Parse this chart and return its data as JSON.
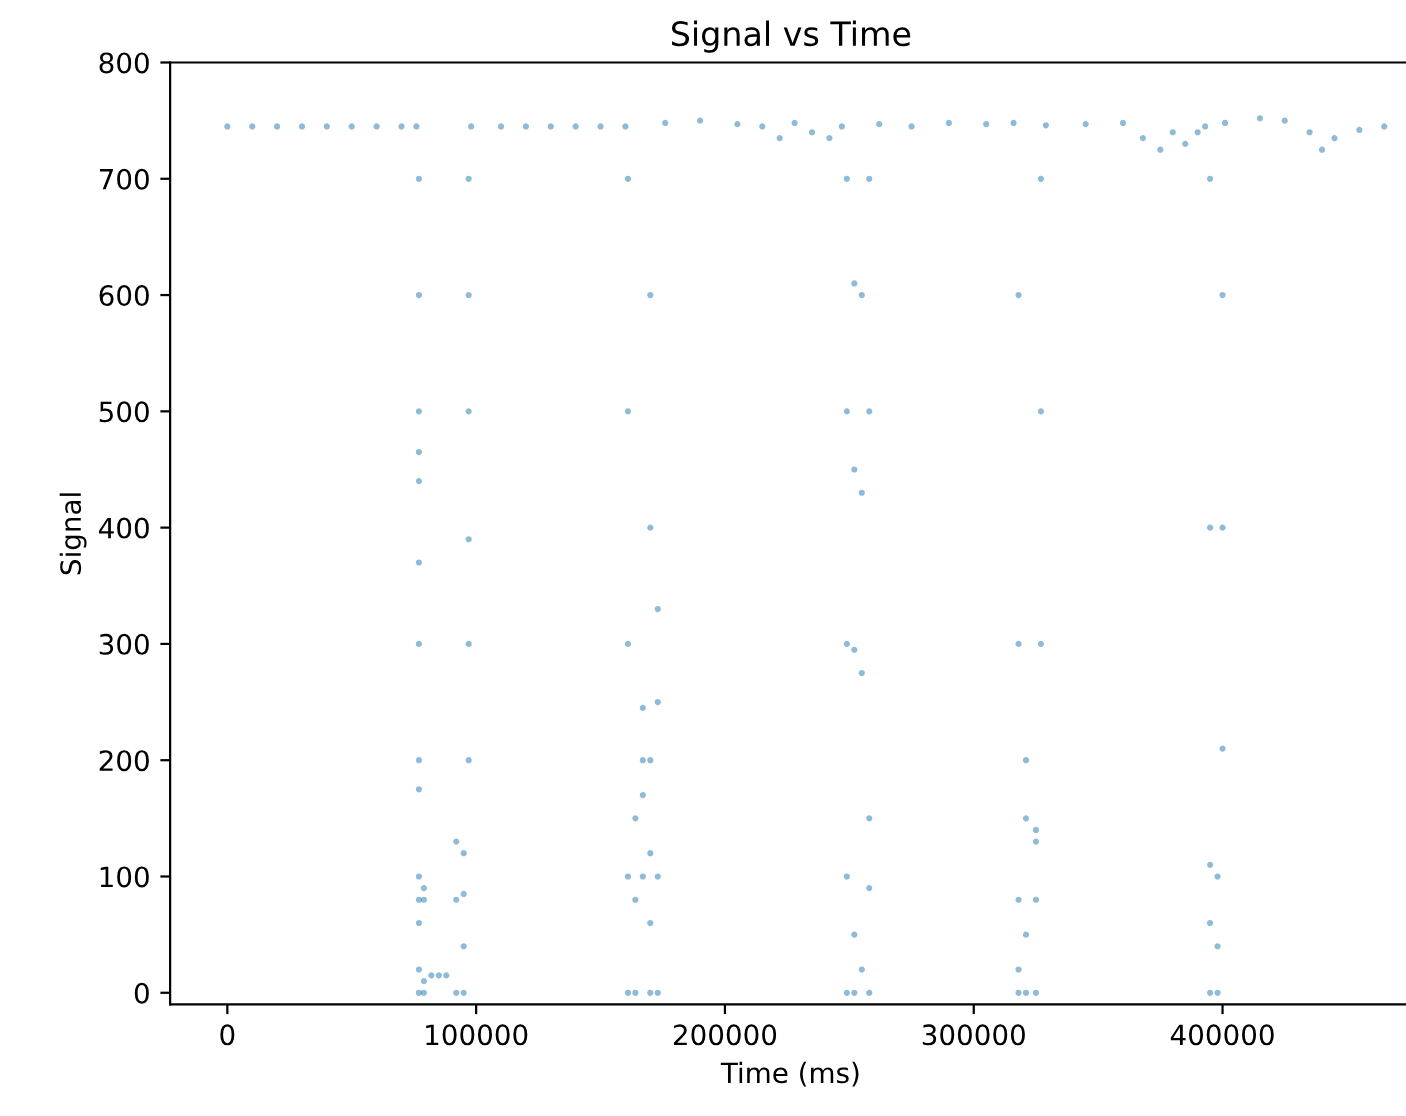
{
  "chart_data": {
    "type": "scatter",
    "title": "Signal vs Time",
    "xlabel": "Time (ms)",
    "ylabel": "Signal",
    "xlim": [
      -23000,
      476000
    ],
    "xticks": [
      0,
      100000,
      200000,
      300000,
      400000
    ],
    "ylim": [
      -10,
      800
    ],
    "yticks": [
      0,
      100,
      200,
      300,
      400,
      500,
      600,
      700,
      800
    ],
    "grid": false,
    "marker": "circle",
    "series": [
      {
        "color": "#1f77b4",
        "x": [
          0,
          10000,
          20000,
          30000,
          40000,
          50000,
          60000,
          70000,
          76000,
          77000,
          77000,
          77000,
          77000,
          77000,
          77000,
          77000,
          77000,
          77000,
          77000,
          77000,
          77000,
          77000,
          77000,
          79000,
          79000,
          79000,
          79000,
          82000,
          85000,
          88000,
          92000,
          92000,
          92000,
          95000,
          95000,
          95000,
          95000,
          97000,
          97000,
          97000,
          97000,
          97000,
          97000,
          98000,
          110000,
          120000,
          130000,
          140000,
          150000,
          160000,
          161000,
          161000,
          161000,
          161000,
          161000,
          164000,
          164000,
          164000,
          167000,
          167000,
          167000,
          167000,
          170000,
          170000,
          170000,
          170000,
          170000,
          170000,
          173000,
          173000,
          173000,
          173000,
          176000,
          190000,
          205000,
          215000,
          222000,
          228000,
          235000,
          242000,
          247000,
          249000,
          249000,
          249000,
          249000,
          249000,
          252000,
          252000,
          252000,
          252000,
          252000,
          255000,
          255000,
          255000,
          255000,
          258000,
          258000,
          258000,
          258000,
          258000,
          262000,
          275000,
          290000,
          305000,
          316000,
          318000,
          318000,
          318000,
          318000,
          318000,
          321000,
          321000,
          321000,
          321000,
          325000,
          325000,
          325000,
          325000,
          327000,
          327000,
          327000,
          329000,
          345000,
          360000,
          368000,
          375000,
          380000,
          385000,
          390000,
          393000,
          395000,
          395000,
          395000,
          395000,
          395000,
          398000,
          398000,
          398000,
          400000,
          400000,
          400000,
          401000,
          415000,
          425000,
          435000,
          440000,
          445000,
          455000,
          465000
        ],
        "values": [
          745,
          745,
          745,
          745,
          745,
          745,
          745,
          745,
          745,
          700,
          600,
          500,
          465,
          440,
          370,
          300,
          200,
          175,
          100,
          80,
          60,
          20,
          0,
          0,
          10,
          80,
          90,
          15,
          15,
          15,
          0,
          80,
          130,
          0,
          40,
          85,
          120,
          200,
          300,
          390,
          500,
          600,
          700,
          745,
          745,
          745,
          745,
          745,
          745,
          745,
          700,
          500,
          300,
          100,
          0,
          0,
          80,
          150,
          245,
          200,
          170,
          100,
          0,
          60,
          120,
          600,
          400,
          200,
          250,
          330,
          100,
          0,
          748,
          750,
          747,
          745,
          735,
          748,
          740,
          735,
          745,
          700,
          500,
          300,
          100,
          0,
          0,
          50,
          295,
          450,
          610,
          600,
          430,
          275,
          20,
          0,
          90,
          150,
          500,
          700,
          747,
          745,
          748,
          747,
          748,
          600,
          300,
          80,
          20,
          0,
          200,
          150,
          0,
          50,
          0,
          80,
          130,
          140,
          300,
          500,
          700,
          746,
          747,
          748,
          735,
          725,
          740,
          730,
          740,
          745,
          700,
          400,
          110,
          60,
          0,
          0,
          40,
          100,
          210,
          400,
          600,
          748,
          752,
          750,
          740,
          725,
          735,
          742,
          745
        ]
      }
    ]
  }
}
